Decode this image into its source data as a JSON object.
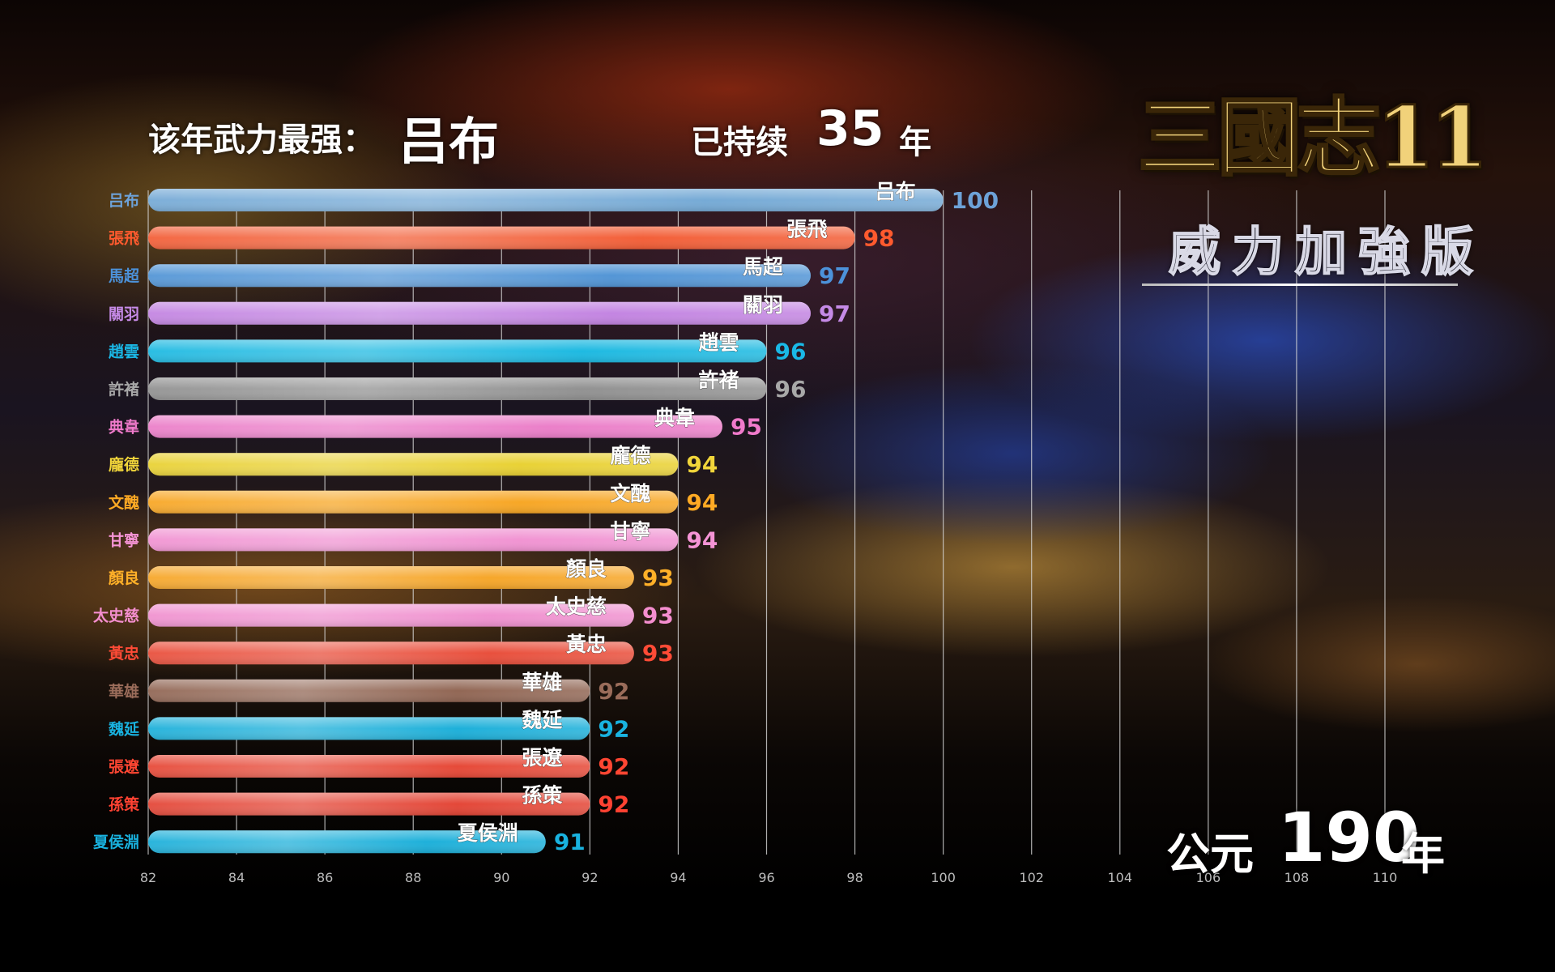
{
  "header": {
    "strongest_label": "该年武力最强：",
    "strongest_name": "吕布",
    "duration_label": "已持续",
    "duration_value": "35",
    "duration_unit": "年"
  },
  "year": {
    "prefix": "公元",
    "value": "190",
    "unit": "年"
  },
  "logo": {
    "main": "三國志11",
    "subtitle": "威力加強版"
  },
  "colors": {
    "grid": "#d8d8d8",
    "tick": "#bdbdbd"
  },
  "chart_data": {
    "type": "bar",
    "orientation": "horizontal",
    "title": "",
    "xlabel": "",
    "ylabel": "",
    "xlim": [
      82,
      110
    ],
    "xticks": [
      82,
      84,
      86,
      88,
      90,
      92,
      94,
      96,
      98,
      100,
      102,
      104,
      106,
      108,
      110
    ],
    "grid": true,
    "categories": [
      "吕布",
      "張飛",
      "馬超",
      "關羽",
      "趙雲",
      "許褚",
      "典韋",
      "龐德",
      "文醜",
      "甘寧",
      "顏良",
      "太史慈",
      "黃忠",
      "華雄",
      "魏延",
      "張遼",
      "孫策",
      "夏侯淵"
    ],
    "values": [
      100,
      98,
      97,
      97,
      96,
      96,
      95,
      94,
      94,
      94,
      93,
      93,
      93,
      92,
      92,
      92,
      92,
      91
    ],
    "bar_colors": [
      "#6fa6d4",
      "#f2572e",
      "#4a90d4",
      "#c07ee0",
      "#12b6e0",
      "#8c8c8c",
      "#ea78c6",
      "#e8cf2a",
      "#f7a21a",
      "#f08ed0",
      "#f6a21f",
      "#ef8ccd",
      "#e84632",
      "#8c5f4c",
      "#12acd8",
      "#e5402e",
      "#e23d2d",
      "#12acd8"
    ],
    "label_colors": [
      "#6da2d8",
      "#ff5a2e",
      "#4c92da",
      "#c58ae6",
      "#1ab8e6",
      "#a8a8a8",
      "#f07acb",
      "#f1d53a",
      "#ffaa24",
      "#f594d6",
      "#ffb028",
      "#f48ecf",
      "#ff4b36",
      "#9a6c5a",
      "#19b2df",
      "#ff4632",
      "#ff4232",
      "#19b2df"
    ]
  }
}
